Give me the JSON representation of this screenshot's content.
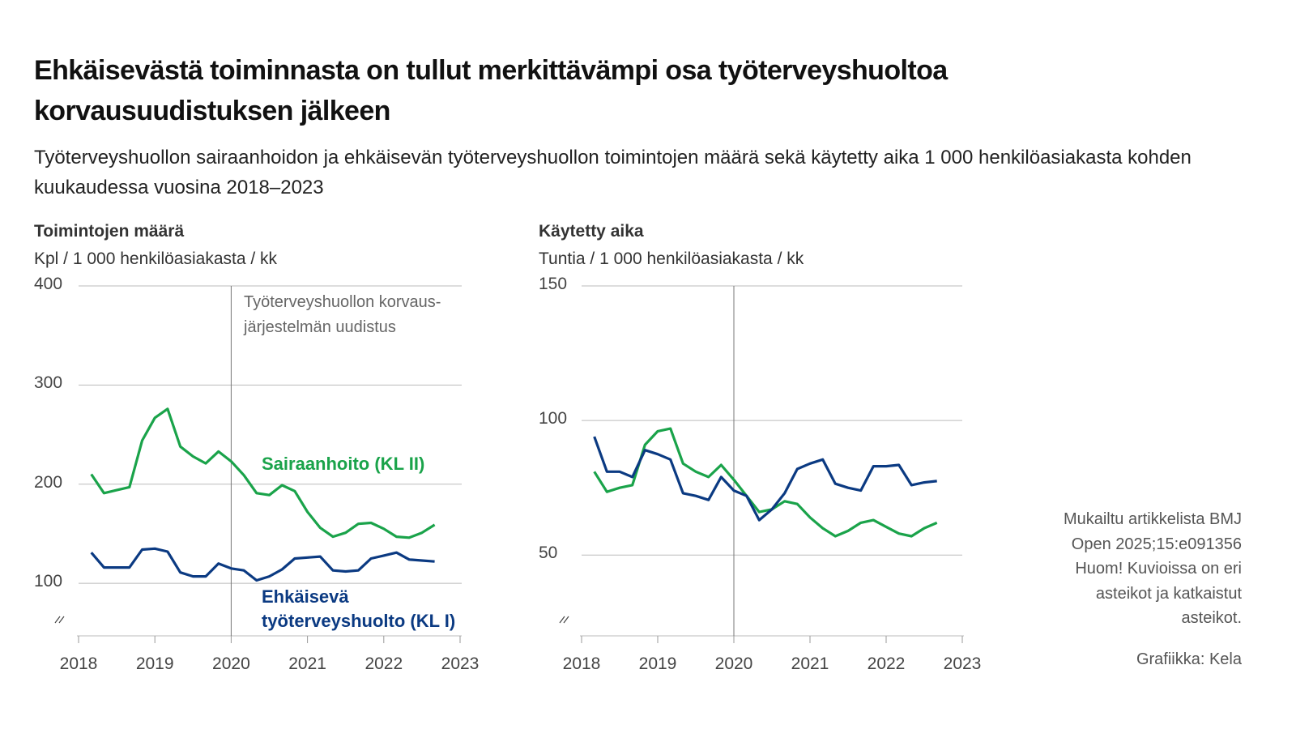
{
  "title": "Ehkäisevästä toiminnasta on tullut merkittävämpi osa työterveyshuoltoa korvausuudistuksen jälkeen",
  "subtitle": "Työterveyshuollon sairaanhoidon ja ehkäisevän työterveyshuollon toimintojen määrä sekä käytetty aika 1 000 henkilöasiakasta kohden kuukaudessa vuosina 2018–2023",
  "source_note": [
    "Mukailtu artikkelista BMJ",
    "Open 2025;15:e091356",
    "Huom! Kuvioissa on eri",
    "asteikot ja katkaistut",
    "asteikot."
  ],
  "credit": "Grafiikka: Kela",
  "chart_data": [
    {
      "type": "line",
      "title": "Toimintojen määrä",
      "y_label": "Kpl / 1 000 henkilöasiakasta / kk",
      "xlim": [
        2018,
        2023
      ],
      "xticks": [
        2018,
        2019,
        2020,
        2021,
        2022,
        2023
      ],
      "ylim": [
        47,
        400
      ],
      "yticks": [
        100,
        200,
        300,
        400
      ],
      "grid": true,
      "vline": 2020,
      "annotation": [
        "Työterveyshuollon korvaus-",
        "järjestelmän uudistus"
      ],
      "x": [
        2018.167,
        2018.333,
        2018.5,
        2018.667,
        2018.833,
        2019,
        2019.167,
        2019.333,
        2019.5,
        2019.667,
        2019.833,
        2020,
        2020.167,
        2020.333,
        2020.5,
        2020.667,
        2020.833,
        2021,
        2021.167,
        2021.333,
        2021.5,
        2021.667,
        2021.833,
        2022,
        2022.167,
        2022.333,
        2022.5,
        2022.667
      ],
      "series": [
        {
          "name": "Sairaanhoito (KL II)",
          "color": "#1aa34a",
          "values": [
            210,
            191,
            194,
            197,
            244,
            267,
            276,
            238,
            228,
            221,
            233,
            223,
            209,
            191,
            189,
            199,
            193,
            172,
            156,
            147,
            151,
            160,
            161,
            155,
            147,
            146,
            151,
            159
          ]
        },
        {
          "name": "Ehkäisevä työterveyshuolto (KL I)",
          "color": "#0b3a82",
          "values": [
            131,
            116,
            116,
            116,
            134,
            135,
            132,
            111,
            107,
            107,
            120,
            115,
            113,
            103,
            107,
            114,
            125,
            126,
            127,
            113,
            112,
            113,
            125,
            128,
            131,
            124,
            123,
            122
          ]
        }
      ]
    },
    {
      "type": "line",
      "title": "Käytetty aika",
      "y_label": "Tuntia / 1 000 henkilöasiakasta / kk",
      "xlim": [
        2018,
        2023
      ],
      "xticks": [
        2018,
        2019,
        2020,
        2021,
        2022,
        2023
      ],
      "ylim": [
        20,
        150
      ],
      "yticks": [
        50,
        100,
        150
      ],
      "grid": true,
      "vline": 2020,
      "x": [
        2018.167,
        2018.333,
        2018.5,
        2018.667,
        2018.833,
        2019,
        2019.167,
        2019.333,
        2019.5,
        2019.667,
        2019.833,
        2020,
        2020.167,
        2020.333,
        2020.5,
        2020.667,
        2020.833,
        2021,
        2021.167,
        2021.333,
        2021.5,
        2021.667,
        2021.833,
        2022,
        2022.167,
        2022.333,
        2022.5,
        2022.667
      ],
      "series": [
        {
          "color": "#1aa34a",
          "values": [
            81,
            73.5,
            75,
            76,
            91,
            96,
            97,
            84,
            81,
            79,
            83.5,
            78,
            72,
            66,
            67,
            70,
            69,
            64,
            60,
            57,
            59,
            62,
            63,
            60.5,
            58,
            57,
            60,
            62
          ]
        },
        {
          "color": "#0b3a82",
          "values": [
            94,
            81,
            81,
            79,
            89,
            87.5,
            85.5,
            73,
            72,
            70.5,
            79,
            74,
            72,
            63,
            67,
            73,
            82,
            84,
            85.5,
            76.5,
            75,
            74,
            83,
            83,
            83.5,
            76,
            77,
            77.5
          ]
        }
      ]
    }
  ]
}
